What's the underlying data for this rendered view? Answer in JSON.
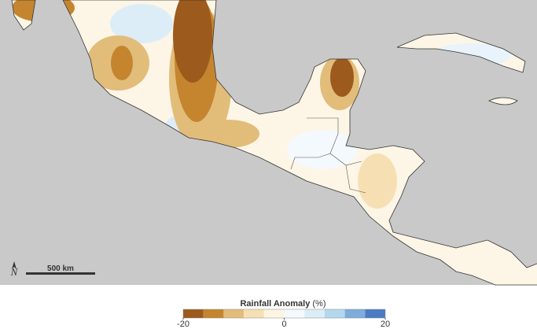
{
  "map": {
    "scale_bar": "500 km",
    "north": "N",
    "legend": {
      "title": "Rainfall Anomaly",
      "unit": "(%)",
      "range": [
        -20,
        20
      ],
      "ticks": [
        -20,
        0,
        20
      ],
      "colors": [
        "#9c5a1c",
        "#c5852f",
        "#e2bd7a",
        "#f6e0b3",
        "#fdf4e2",
        "#f4f9fd",
        "#dcedf8",
        "#b2d8ee",
        "#7eaddc",
        "#4a7bc3"
      ]
    }
  }
}
